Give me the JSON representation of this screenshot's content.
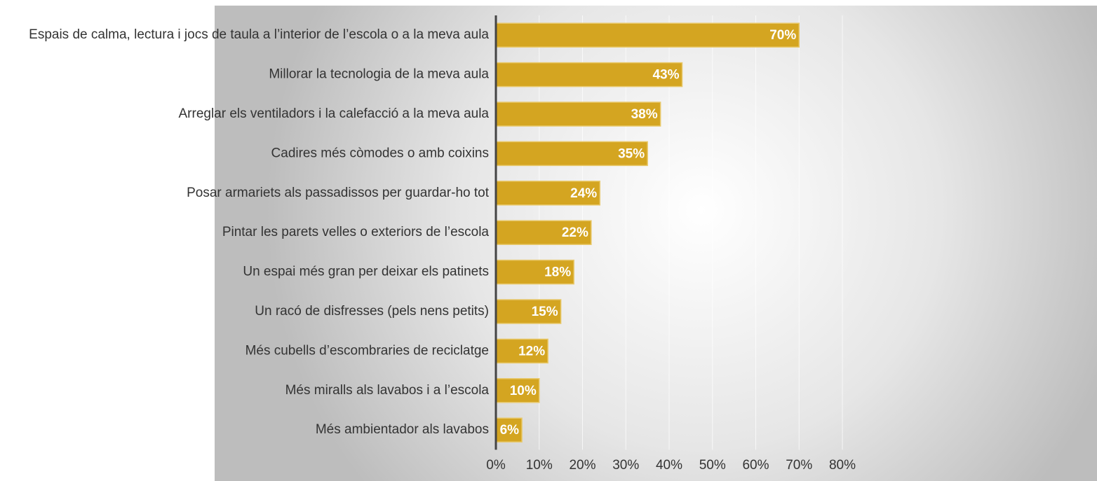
{
  "chart_data": {
    "type": "bar",
    "categories": [
      "Espais de calma, lectura i jocs de taula a l’interior de l’escola o a la meva aula",
      "Millorar la tecnologia de la meva aula",
      "Arreglar els ventiladors i la calefacció a la meva aula",
      "Cadires més còmodes o amb coixins",
      "Posar armariets als passadissos per guardar-ho tot",
      "Pintar les parets velles o exteriors de l’escola",
      "Un espai més gran per deixar els patinets",
      "Un racó de disfresses (pels nens petits)",
      "Més cubells d’escombraries de reciclatge",
      "Més miralls als lavabos i a l’escola",
      "Més ambientador als lavabos"
    ],
    "values": [
      70,
      43,
      38,
      35,
      24,
      22,
      18,
      15,
      12,
      10,
      6
    ],
    "value_labels": [
      "70%",
      "43%",
      "38%",
      "35%",
      "24%",
      "22%",
      "18%",
      "15%",
      "12%",
      "10%",
      "6%"
    ],
    "color": "#d4a521",
    "xlim": [
      0,
      80
    ],
    "xticks": [
      {
        "value": 0,
        "label": "0%"
      },
      {
        "value": 10,
        "label": "10%"
      },
      {
        "value": 20,
        "label": "20%"
      },
      {
        "value": 30,
        "label": "30%"
      },
      {
        "value": 40,
        "label": "40%"
      },
      {
        "value": 50,
        "label": "50%"
      },
      {
        "value": 60,
        "label": "60%"
      },
      {
        "value": 70,
        "label": "70%"
      },
      {
        "value": 80,
        "label": "80%"
      }
    ],
    "grid": true
  }
}
